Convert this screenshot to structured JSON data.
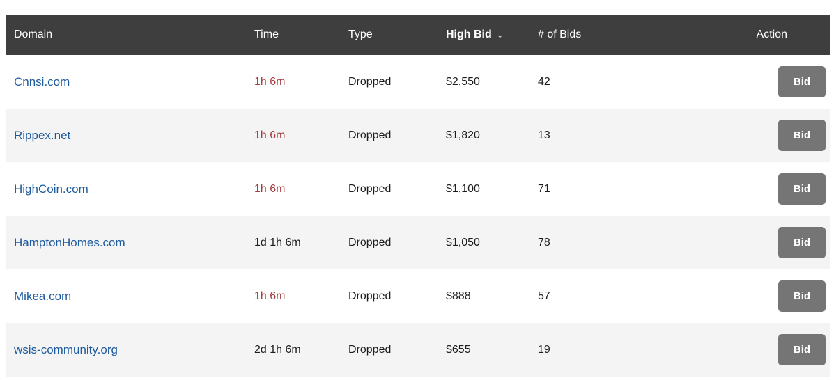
{
  "header": {
    "columns": [
      {
        "label": "Domain"
      },
      {
        "label": "Time"
      },
      {
        "label": "Type"
      },
      {
        "label": "High Bid",
        "sort_icon": "↓",
        "sorted": "desc"
      },
      {
        "label": "# of Bids"
      },
      {
        "label": "Action"
      }
    ]
  },
  "rows": [
    {
      "domain": "Cnnsi.com",
      "time": "1h 6m",
      "time_urgent": true,
      "type": "Dropped",
      "high_bid": "$2,550",
      "bids": "42",
      "action": "Bid"
    },
    {
      "domain": "Rippex.net",
      "time": "1h 6m",
      "time_urgent": true,
      "type": "Dropped",
      "high_bid": "$1,820",
      "bids": "13",
      "action": "Bid"
    },
    {
      "domain": "HighCoin.com",
      "time": "1h 6m",
      "time_urgent": true,
      "type": "Dropped",
      "high_bid": "$1,100",
      "bids": "71",
      "action": "Bid"
    },
    {
      "domain": "HamptonHomes.com",
      "time": "1d 1h 6m",
      "time_urgent": false,
      "type": "Dropped",
      "high_bid": "$1,050",
      "bids": "78",
      "action": "Bid"
    },
    {
      "domain": "Mikea.com",
      "time": "1h 6m",
      "time_urgent": true,
      "type": "Dropped",
      "high_bid": "$888",
      "bids": "57",
      "action": "Bid"
    },
    {
      "domain": "wsis-community.org",
      "time": "2d 1h 6m",
      "time_urgent": false,
      "type": "Dropped",
      "high_bid": "$655",
      "bids": "19",
      "action": "Bid"
    }
  ],
  "colors": {
    "header_bg": "#3e3e3e",
    "header_text": "#ffffff",
    "row_alt_bg": "#f4f4f4",
    "link": "#1e5b9e",
    "time_urgent": "#a53e3e",
    "text": "#1d1d1f",
    "button_bg": "#757575",
    "button_text": "#ffffff"
  }
}
